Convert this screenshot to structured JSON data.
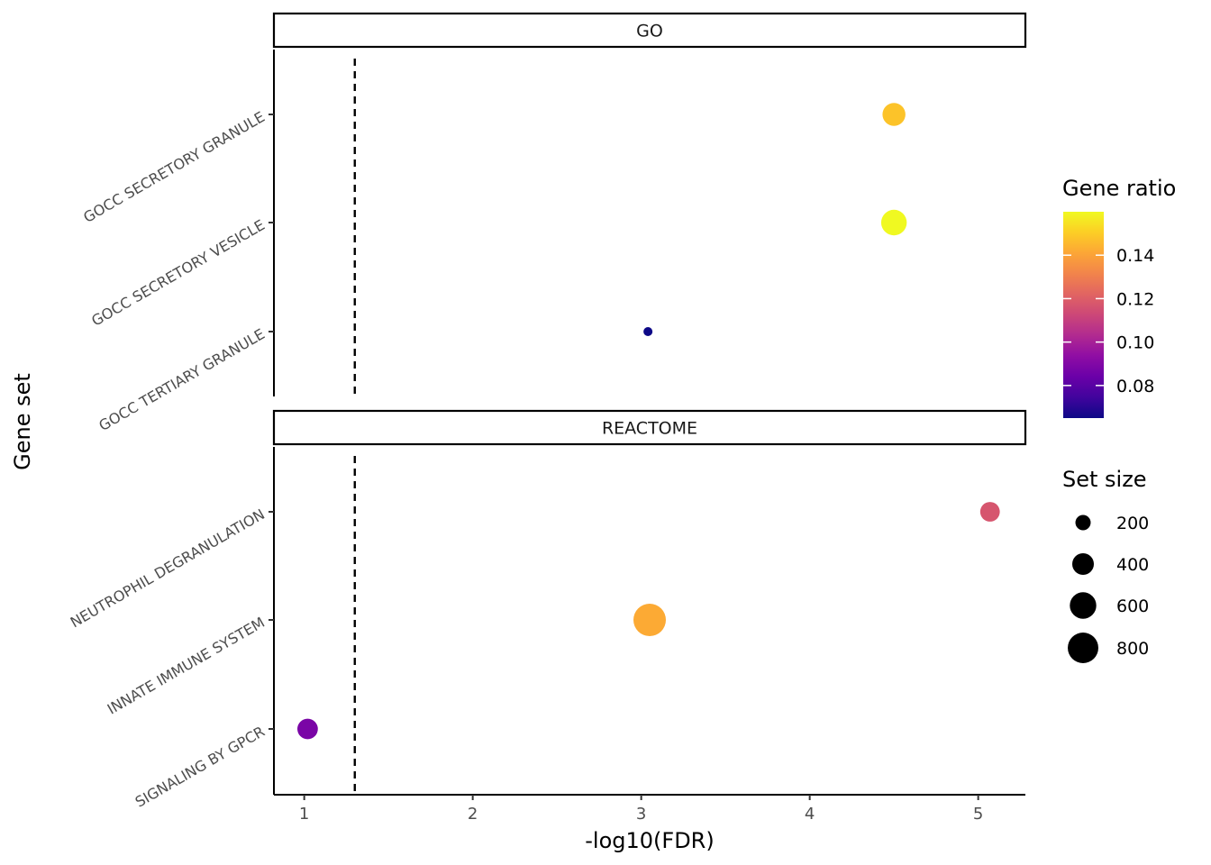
{
  "chart_data": {
    "type": "scatter",
    "title": "",
    "xlabel": "-log10(FDR)",
    "ylabel": "Gene set",
    "xlim": [
      0.82,
      5.28
    ],
    "x_ticks": [
      1,
      2,
      3,
      4,
      5
    ],
    "threshold_line": {
      "x": 1.3,
      "style": "dashed"
    },
    "grid": false,
    "facets": [
      {
        "name": "GO",
        "categories": [
          "GOCC SECRETORY GRANULE",
          "GOCC SECRETORY VESICLE",
          "GOCC TERTIARY GRANULE"
        ],
        "points": [
          {
            "category": "GOCC SECRETORY GRANULE",
            "x": 4.5,
            "set_size": 450,
            "gene_ratio": 0.148
          },
          {
            "category": "GOCC SECRETORY VESICLE",
            "x": 4.5,
            "set_size": 560,
            "gene_ratio": 0.16
          },
          {
            "category": "GOCC TERTIARY GRANULE",
            "x": 3.04,
            "set_size": 70,
            "gene_ratio": 0.065
          }
        ]
      },
      {
        "name": "REACTOME",
        "categories": [
          "NEUTROPHIL DEGRANULATION",
          "INNATE IMMUNE SYSTEM",
          "SIGNALING BY GPCR"
        ],
        "points": [
          {
            "category": "NEUTROPHIL DEGRANULATION",
            "x": 5.07,
            "set_size": 330,
            "gene_ratio": 0.117
          },
          {
            "category": "INNATE IMMUNE SYSTEM",
            "x": 3.05,
            "set_size": 900,
            "gene_ratio": 0.142
          },
          {
            "category": "SIGNALING BY GPCR",
            "x": 1.02,
            "set_size": 360,
            "gene_ratio": 0.088
          }
        ]
      }
    ],
    "color_legend": {
      "title": "Gene ratio",
      "range": [
        0.065,
        0.16
      ],
      "ticks": [
        0.08,
        0.1,
        0.12,
        0.14
      ],
      "tick_labels": [
        "0.08",
        "0.10",
        "0.12",
        "0.14"
      ],
      "palette": "plasma"
    },
    "size_legend": {
      "title": "Set size",
      "values": [
        200,
        400,
        600,
        800
      ],
      "labels": [
        "200",
        "400",
        "600",
        "800"
      ]
    }
  }
}
